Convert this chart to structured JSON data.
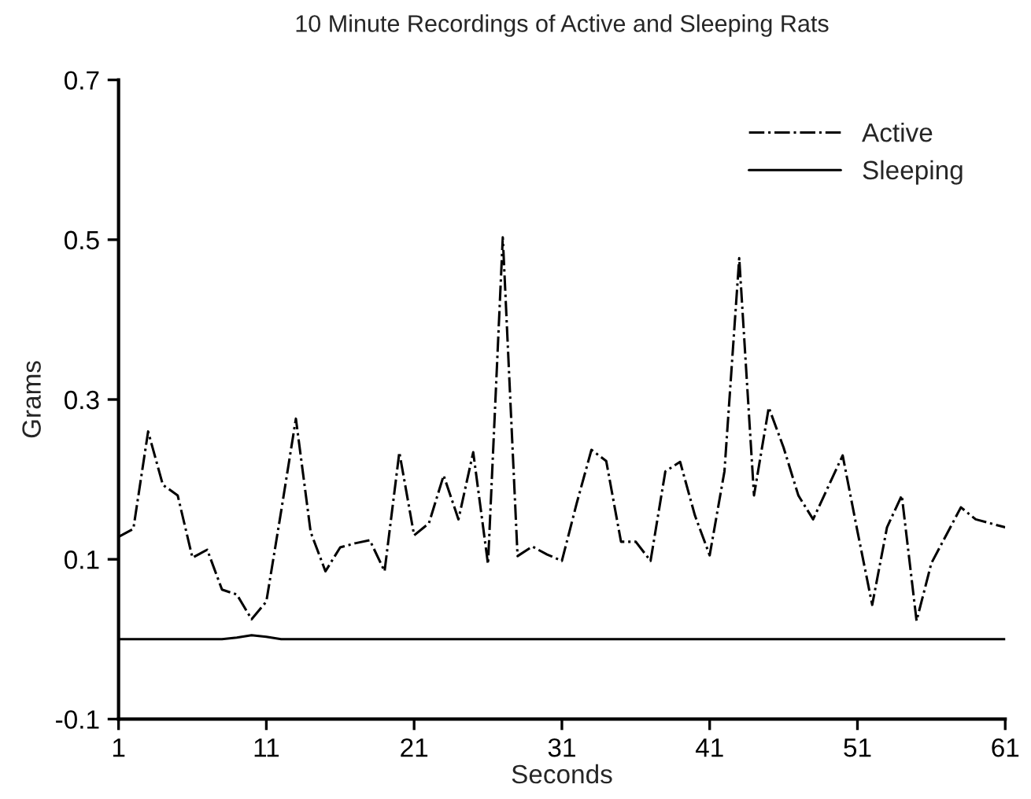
{
  "chart_data": {
    "type": "line",
    "title": "10 Minute Recordings of Active and Sleeping Rats",
    "xlabel": "Seconds",
    "ylabel": "Grams",
    "x": [
      1,
      2,
      3,
      4,
      5,
      6,
      7,
      8,
      9,
      10,
      11,
      12,
      13,
      14,
      15,
      16,
      17,
      18,
      19,
      20,
      21,
      22,
      23,
      24,
      25,
      26,
      27,
      28,
      29,
      30,
      31,
      32,
      33,
      34,
      35,
      36,
      37,
      38,
      39,
      40,
      41,
      42,
      43,
      44,
      45,
      46,
      47,
      48,
      49,
      50,
      51,
      52,
      53,
      54,
      55,
      56,
      57,
      58,
      59,
      60,
      61
    ],
    "series": [
      {
        "name": "Active",
        "color": "#000000",
        "line_style": "dashdot",
        "values": [
          0.128,
          0.138,
          0.26,
          0.193,
          0.18,
          0.102,
          0.112,
          0.062,
          0.056,
          0.025,
          0.047,
          0.16,
          0.276,
          0.134,
          0.085,
          0.115,
          0.12,
          0.124,
          0.085,
          0.234,
          0.13,
          0.145,
          0.205,
          0.15,
          0.234,
          0.094,
          0.503,
          0.104,
          0.116,
          0.106,
          0.098,
          0.17,
          0.237,
          0.223,
          0.122,
          0.122,
          0.098,
          0.21,
          0.222,
          0.155,
          0.105,
          0.21,
          0.477,
          0.18,
          0.29,
          0.24,
          0.18,
          0.15,
          0.19,
          0.23,
          0.135,
          0.043,
          0.14,
          0.18,
          0.023,
          0.095,
          0.13,
          0.165,
          0.15,
          0.145,
          0.14
        ]
      },
      {
        "name": "Sleeping",
        "color": "#000000",
        "line_style": "solid",
        "values": [
          0,
          0,
          0,
          0,
          0,
          0,
          0,
          0,
          0.002,
          0.005,
          0.003,
          0,
          0,
          0,
          0,
          0,
          0,
          0,
          0,
          0,
          0,
          0,
          0,
          0,
          0,
          0,
          0,
          0,
          0,
          0,
          0,
          0,
          0,
          0,
          0,
          0,
          0,
          0,
          0,
          0,
          0,
          0,
          0,
          0,
          0,
          0,
          0,
          0,
          0,
          0,
          0,
          0,
          0,
          0,
          0,
          0,
          0,
          0,
          0,
          0,
          0
        ]
      }
    ],
    "xlim": [
      1,
      61
    ],
    "xticks": [
      1,
      11,
      21,
      31,
      41,
      51,
      61
    ],
    "ylim": [
      -0.1,
      0.7
    ],
    "yticks": [
      -0.1,
      0.1,
      0.3,
      0.5,
      0.7
    ],
    "grid": false,
    "legend": "top right",
    "marker": "none"
  }
}
